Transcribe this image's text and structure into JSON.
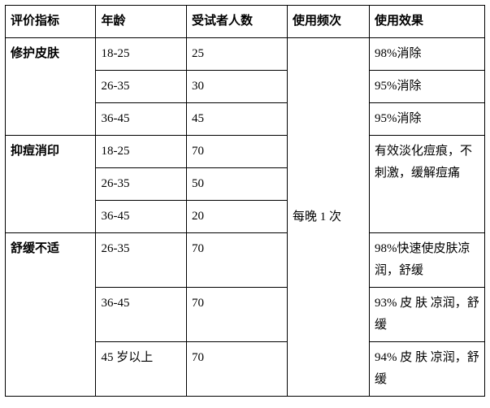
{
  "headers": {
    "metric": "评价指标",
    "age": "年龄",
    "count": "受试者人数",
    "freq": "使用频次",
    "effect": "使用效果"
  },
  "freq_value": "每晚 1 次",
  "groups": [
    {
      "metric": "修护皮肤",
      "rows": [
        {
          "age": "18-25",
          "count": "25",
          "effect": "98%消除"
        },
        {
          "age": "26-35",
          "count": "30",
          "effect": "95%消除"
        },
        {
          "age": "36-45",
          "count": "45",
          "effect": "95%消除"
        }
      ]
    },
    {
      "metric": "抑痘消印",
      "merged_effect": "有效淡化痘痕，不刺激，缓解痘痛",
      "rows": [
        {
          "age": "18-25",
          "count": "70"
        },
        {
          "age": "26-35",
          "count": "50"
        },
        {
          "age": "36-45",
          "count": "20"
        }
      ]
    },
    {
      "metric": "舒缓不适",
      "rows": [
        {
          "age": "26-35",
          "count": "70",
          "effect": "98%快速使皮肤凉润，舒缓"
        },
        {
          "age": "36-45",
          "count": "70",
          "effect": "93% 皮 肤 凉润，舒缓"
        },
        {
          "age": "45 岁以上",
          "count": "70",
          "effect": "94% 皮 肤 凉润，舒缓"
        }
      ]
    }
  ]
}
